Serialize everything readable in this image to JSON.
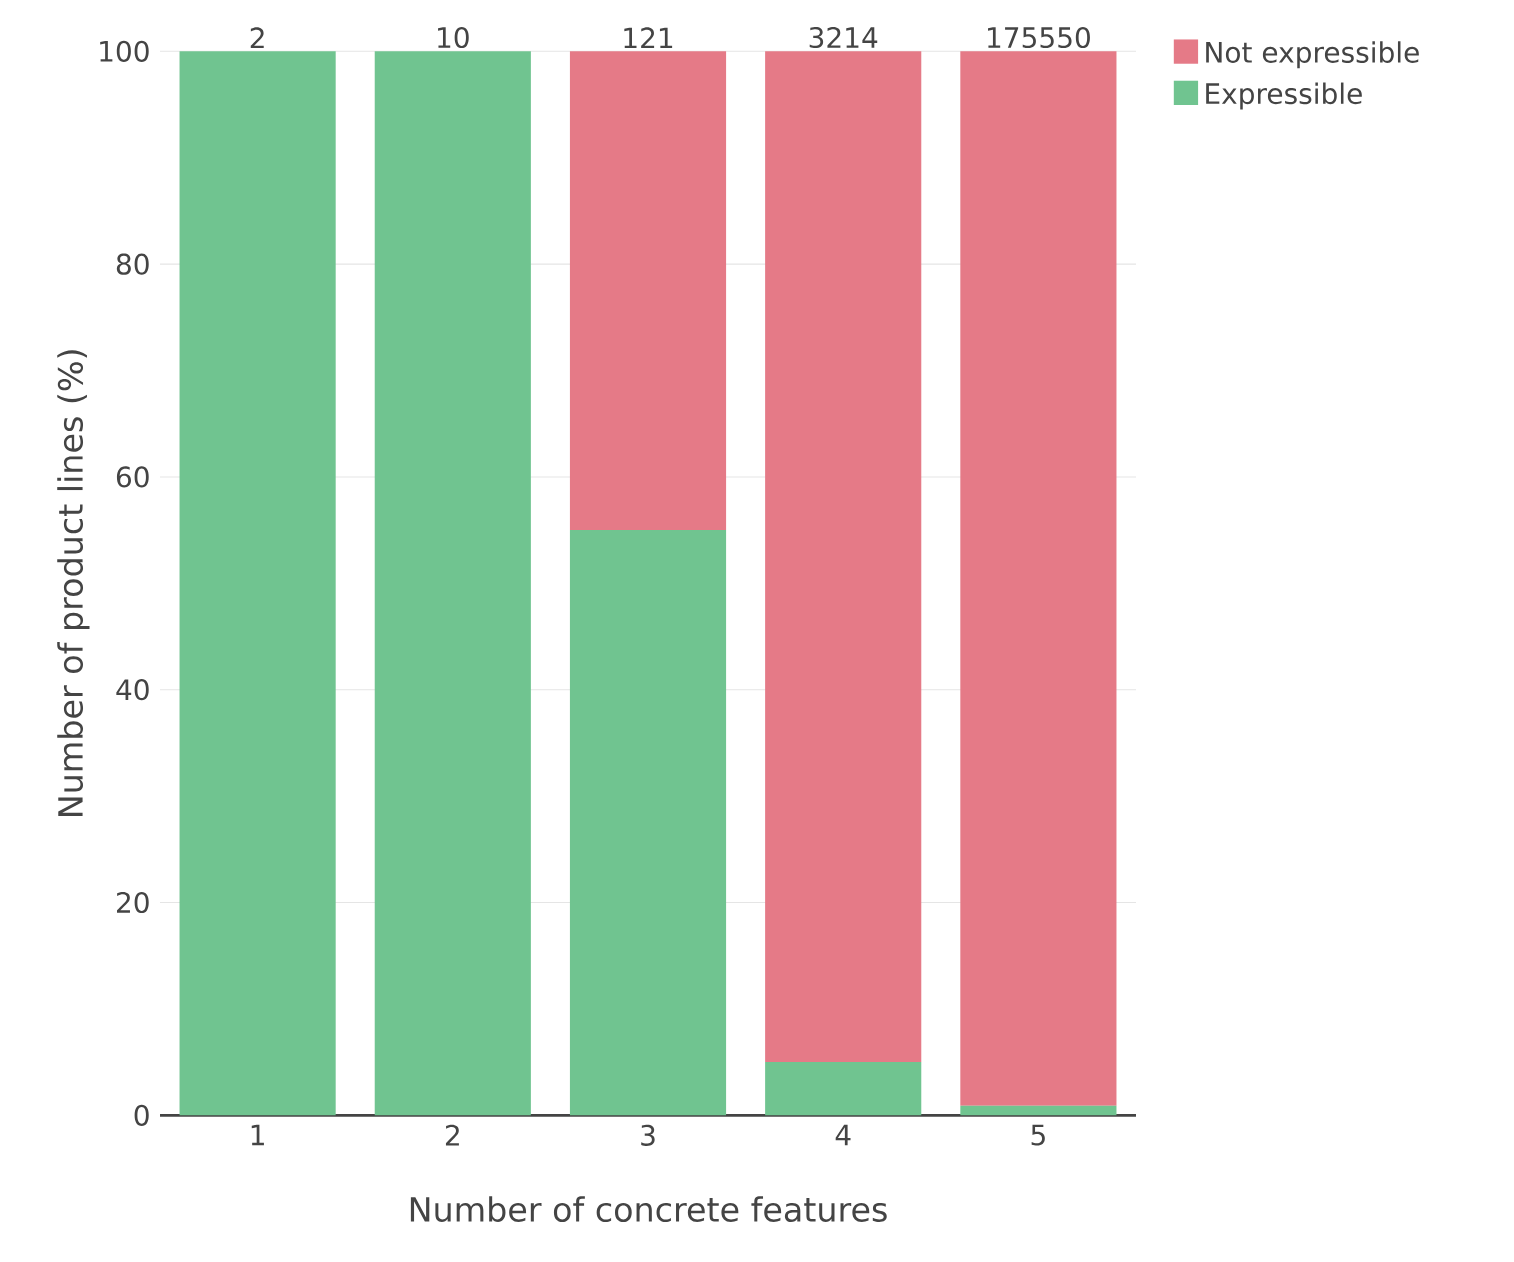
{
  "chart_data": {
    "type": "bar",
    "stacked": true,
    "xlabel": "Number of concrete features",
    "ylabel": "Number of product lines (%)",
    "categories": [
      "1",
      "2",
      "3",
      "4",
      "5"
    ],
    "series": [
      {
        "name": "Expressible",
        "color": "#70c490",
        "values": [
          100,
          100,
          55,
          5,
          0.9
        ]
      },
      {
        "name": "Not expressible",
        "color": "#e57a87",
        "values": [
          0,
          0,
          45,
          95,
          99.1
        ]
      }
    ],
    "annotations": [
      {
        "text": "2",
        "x": "1",
        "y": 100
      },
      {
        "text": "10",
        "x": "2",
        "y": 100
      },
      {
        "text": "121",
        "x": "3",
        "y": 100
      },
      {
        "text": "3214",
        "x": "4",
        "y": 100
      },
      {
        "text": "175550",
        "x": "5",
        "y": 100
      }
    ],
    "ylim": [
      0,
      100
    ],
    "yticks": [
      0,
      20,
      40,
      60,
      80,
      100
    ],
    "grid": "y",
    "legend": "top right"
  }
}
